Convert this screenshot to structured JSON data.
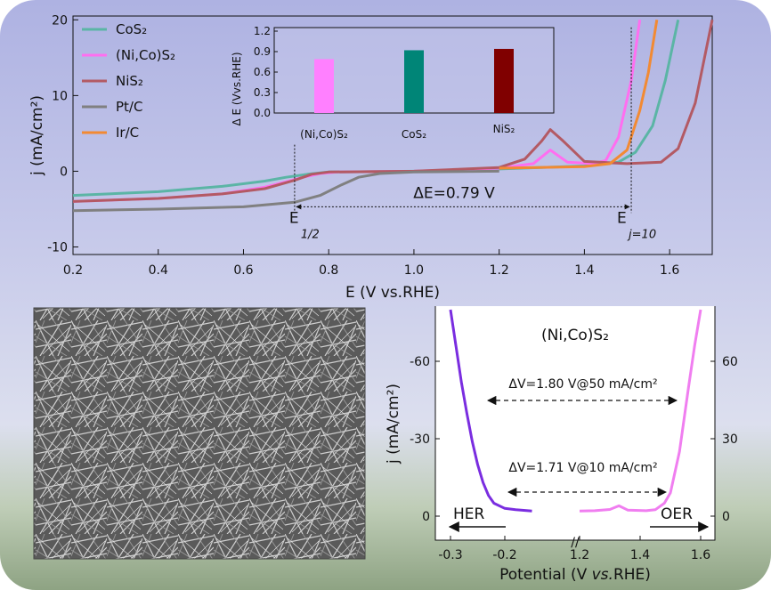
{
  "main_chart": {
    "type": "line",
    "xlabel": "E (V vs.RHE)",
    "ylabel": "j (mA/cm²)",
    "xlim": [
      0.2,
      1.7
    ],
    "ylim": [
      -11,
      20.5
    ],
    "x_ticks": [
      "0.2",
      "0.4",
      "0.6",
      "0.8",
      "1.0",
      "1.2",
      "1.4",
      "1.6"
    ],
    "y_ticks": [
      "20",
      "10",
      "0",
      "-10"
    ],
    "legend": [
      {
        "label": "CoS₂",
        "color": "#5bb5a5"
      },
      {
        "label": "(Ni,Co)S₂",
        "color": "#ff6ef0"
      },
      {
        "label": "NiS₂",
        "color": "#b35a64"
      },
      {
        "label": "Pt/C",
        "color": "#808080"
      },
      {
        "label": "Ir/C",
        "color": "#f28a33"
      }
    ],
    "series": [
      {
        "name": "CoS₂",
        "color": "#5bb5a5",
        "points": [
          [
            0.2,
            -3.2
          ],
          [
            0.4,
            -2.7
          ],
          [
            0.55,
            -2.0
          ],
          [
            0.65,
            -1.3
          ],
          [
            0.7,
            -0.8
          ],
          [
            0.75,
            -0.4
          ],
          [
            0.8,
            -0.1
          ],
          [
            1.0,
            0.0
          ],
          [
            1.2,
            0.3
          ],
          [
            1.4,
            0.7
          ],
          [
            1.48,
            1.2
          ],
          [
            1.52,
            2.5
          ],
          [
            1.56,
            6.0
          ],
          [
            1.59,
            12.0
          ],
          [
            1.62,
            20.0
          ]
        ]
      },
      {
        "name": "(Ni,Co)S₂",
        "color": "#ff6ef0",
        "points": [
          [
            0.2,
            -4.0
          ],
          [
            0.4,
            -3.6
          ],
          [
            0.55,
            -3.0
          ],
          [
            0.65,
            -2.1
          ],
          [
            0.7,
            -1.4
          ],
          [
            0.74,
            -0.8
          ],
          [
            0.78,
            -0.3
          ],
          [
            0.82,
            -0.1
          ],
          [
            1.0,
            0.0
          ],
          [
            1.2,
            0.4
          ],
          [
            1.28,
            1.0
          ],
          [
            1.32,
            2.8
          ],
          [
            1.36,
            1.2
          ],
          [
            1.42,
            1.0
          ],
          [
            1.45,
            1.4
          ],
          [
            1.48,
            4.5
          ],
          [
            1.51,
            12.0
          ],
          [
            1.53,
            20.0
          ]
        ]
      },
      {
        "name": "NiS₂",
        "color": "#b35a64",
        "points": [
          [
            0.2,
            -4.0
          ],
          [
            0.4,
            -3.6
          ],
          [
            0.55,
            -3.0
          ],
          [
            0.65,
            -2.3
          ],
          [
            0.72,
            -1.2
          ],
          [
            0.76,
            -0.4
          ],
          [
            0.8,
            -0.1
          ],
          [
            1.0,
            0.0
          ],
          [
            1.2,
            0.5
          ],
          [
            1.26,
            1.6
          ],
          [
            1.3,
            4.0
          ],
          [
            1.32,
            5.5
          ],
          [
            1.35,
            4.0
          ],
          [
            1.4,
            1.3
          ],
          [
            1.5,
            1.0
          ],
          [
            1.58,
            1.2
          ],
          [
            1.62,
            3.0
          ],
          [
            1.66,
            9.0
          ],
          [
            1.7,
            20.0
          ]
        ]
      },
      {
        "name": "Pt/C",
        "color": "#808080",
        "points": [
          [
            0.2,
            -5.2
          ],
          [
            0.4,
            -5.0
          ],
          [
            0.6,
            -4.7
          ],
          [
            0.72,
            -4.1
          ],
          [
            0.78,
            -3.2
          ],
          [
            0.83,
            -1.8
          ],
          [
            0.87,
            -0.8
          ],
          [
            0.92,
            -0.3
          ],
          [
            1.0,
            -0.1
          ],
          [
            1.2,
            0.0
          ]
        ]
      },
      {
        "name": "Ir/C",
        "color": "#f28a33",
        "points": [
          [
            1.2,
            0.4
          ],
          [
            1.4,
            0.6
          ],
          [
            1.46,
            1.0
          ],
          [
            1.5,
            2.8
          ],
          [
            1.53,
            8.0
          ],
          [
            1.55,
            13.0
          ],
          [
            1.57,
            20.0
          ]
        ]
      }
    ],
    "annotations": {
      "e_half": "E",
      "e_half_sub": "1/2",
      "e_j10": "E",
      "e_j10_sub": "j=10",
      "delta_e": "ΔE=0.79 V"
    },
    "markers": {
      "e_half_x": 0.72,
      "e_j10_x": 1.51
    }
  },
  "inset_chart": {
    "type": "bar",
    "ylabel": "Δ E (Vvs.RHE)",
    "ylim": [
      0,
      1.2
    ],
    "y_ticks": [
      "0.0",
      "0.3",
      "0.6",
      "0.9",
      "1.2"
    ],
    "categories": [
      "(Ni,Co)S₂",
      "CoS₂",
      "NiS₂"
    ],
    "values": [
      0.79,
      0.92,
      0.94
    ],
    "colors": [
      "#ff80ff",
      "#008577",
      "#800000"
    ]
  },
  "bottom_chart": {
    "type": "line",
    "title": "(Ni,Co)S₂",
    "xlabel_prefix": "Potential (V ",
    "xlabel_italic": "vs.",
    "xlabel_suffix": "RHE)",
    "ylabel": "j (mA/cm²)",
    "x_ticks_left": [
      "-0.3",
      "-0.2"
    ],
    "x_ticks_right": [
      "1.2",
      "1.4",
      "1.6"
    ],
    "y_ticks_left": [
      "-60",
      "-30",
      "0"
    ],
    "y_ticks_right": [
      "60",
      "30",
      "0"
    ],
    "axis_break": "//",
    "her_label": "HER",
    "oer_label": "OER",
    "dv_50_label": "ΔV=1.80 V@50 mA/cm²",
    "dv_10_label": "ΔV=1.71 V@10 mA/cm²",
    "series": [
      {
        "name": "HER",
        "color": "#7a2de0",
        "points": [
          [
            -0.3,
            -80
          ],
          [
            -0.29,
            -66
          ],
          [
            -0.28,
            -52
          ],
          [
            -0.27,
            -40
          ],
          [
            -0.26,
            -29
          ],
          [
            -0.25,
            -20
          ],
          [
            -0.24,
            -13
          ],
          [
            -0.23,
            -8
          ],
          [
            -0.22,
            -5
          ],
          [
            -0.2,
            -3
          ],
          [
            -0.18,
            -2.5
          ],
          [
            -0.15,
            -2
          ]
        ]
      },
      {
        "name": "OER",
        "color": "#f07ef0",
        "points": [
          [
            1.2,
            2
          ],
          [
            1.25,
            2.1
          ],
          [
            1.3,
            2.6
          ],
          [
            1.33,
            4
          ],
          [
            1.36,
            2.3
          ],
          [
            1.42,
            2.1
          ],
          [
            1.45,
            2.5
          ],
          [
            1.48,
            5
          ],
          [
            1.5,
            9
          ],
          [
            1.53,
            25
          ],
          [
            1.56,
            50
          ],
          [
            1.58,
            66
          ],
          [
            1.6,
            80
          ]
        ]
      }
    ]
  },
  "micrograph": {
    "description_icon": "sem-image"
  }
}
